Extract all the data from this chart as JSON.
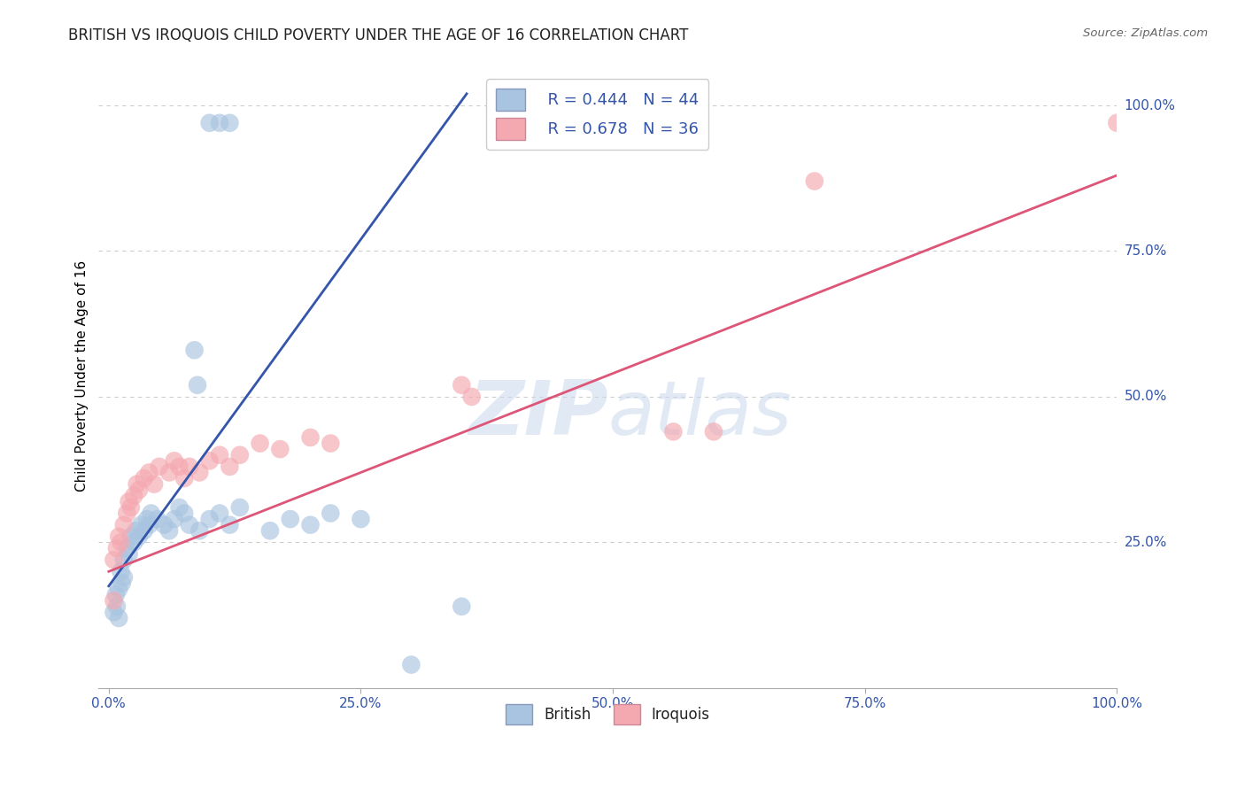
{
  "title": "BRITISH VS IROQUOIS CHILD POVERTY UNDER THE AGE OF 16 CORRELATION CHART",
  "source": "Source: ZipAtlas.com",
  "ylabel": "Child Poverty Under the Age of 16",
  "british_color": "#A8C4E0",
  "iroquois_color": "#F4A8B0",
  "british_line_color": "#3355AA",
  "iroquois_line_color": "#DD5577",
  "legend_R_british": "R = 0.444",
  "legend_N_british": "N = 44",
  "legend_R_iroquois": "R = 0.678",
  "legend_N_iroquois": "N = 36",
  "background_color": "#FFFFFF",
  "grid_color": "#CCCCCC",
  "british_points": [
    [
      0.005,
      0.13
    ],
    [
      0.007,
      0.16
    ],
    [
      0.008,
      0.14
    ],
    [
      0.01,
      0.12
    ],
    [
      0.01,
      0.17
    ],
    [
      0.012,
      0.2
    ],
    [
      0.013,
      0.18
    ],
    [
      0.015,
      0.22
    ],
    [
      0.015,
      0.19
    ],
    [
      0.018,
      0.24
    ],
    [
      0.02,
      0.23
    ],
    [
      0.022,
      0.26
    ],
    [
      0.025,
      0.25
    ],
    [
      0.027,
      0.27
    ],
    [
      0.03,
      0.26
    ],
    [
      0.032,
      0.28
    ],
    [
      0.035,
      0.27
    ],
    [
      0.038,
      0.29
    ],
    [
      0.04,
      0.28
    ],
    [
      0.042,
      0.3
    ],
    [
      0.048,
      0.29
    ],
    [
      0.055,
      0.28
    ],
    [
      0.06,
      0.27
    ],
    [
      0.065,
      0.29
    ],
    [
      0.07,
      0.31
    ],
    [
      0.075,
      0.3
    ],
    [
      0.08,
      0.28
    ],
    [
      0.09,
      0.27
    ],
    [
      0.1,
      0.29
    ],
    [
      0.11,
      0.3
    ],
    [
      0.12,
      0.28
    ],
    [
      0.13,
      0.31
    ],
    [
      0.16,
      0.27
    ],
    [
      0.18,
      0.29
    ],
    [
      0.2,
      0.28
    ],
    [
      0.22,
      0.3
    ],
    [
      0.25,
      0.29
    ],
    [
      0.3,
      0.04
    ],
    [
      0.35,
      0.14
    ],
    [
      0.088,
      0.52
    ],
    [
      0.085,
      0.58
    ],
    [
      0.1,
      0.97
    ],
    [
      0.11,
      0.97
    ],
    [
      0.12,
      0.97
    ]
  ],
  "iroquois_points": [
    [
      0.005,
      0.22
    ],
    [
      0.008,
      0.24
    ],
    [
      0.01,
      0.26
    ],
    [
      0.012,
      0.25
    ],
    [
      0.015,
      0.28
    ],
    [
      0.018,
      0.3
    ],
    [
      0.02,
      0.32
    ],
    [
      0.022,
      0.31
    ],
    [
      0.025,
      0.33
    ],
    [
      0.028,
      0.35
    ],
    [
      0.03,
      0.34
    ],
    [
      0.035,
      0.36
    ],
    [
      0.04,
      0.37
    ],
    [
      0.045,
      0.35
    ],
    [
      0.05,
      0.38
    ],
    [
      0.06,
      0.37
    ],
    [
      0.065,
      0.39
    ],
    [
      0.07,
      0.38
    ],
    [
      0.075,
      0.36
    ],
    [
      0.08,
      0.38
    ],
    [
      0.09,
      0.37
    ],
    [
      0.1,
      0.39
    ],
    [
      0.11,
      0.4
    ],
    [
      0.12,
      0.38
    ],
    [
      0.13,
      0.4
    ],
    [
      0.15,
      0.42
    ],
    [
      0.17,
      0.41
    ],
    [
      0.2,
      0.43
    ],
    [
      0.22,
      0.42
    ],
    [
      0.35,
      0.52
    ],
    [
      0.36,
      0.5
    ],
    [
      0.56,
      0.44
    ],
    [
      0.6,
      0.44
    ],
    [
      0.005,
      0.15
    ],
    [
      0.7,
      0.87
    ],
    [
      1.0,
      0.97
    ]
  ],
  "blue_line": [
    [
      0.0,
      0.175
    ],
    [
      0.355,
      1.02
    ]
  ],
  "pink_line": [
    [
      0.0,
      0.2
    ],
    [
      1.0,
      0.88
    ]
  ]
}
